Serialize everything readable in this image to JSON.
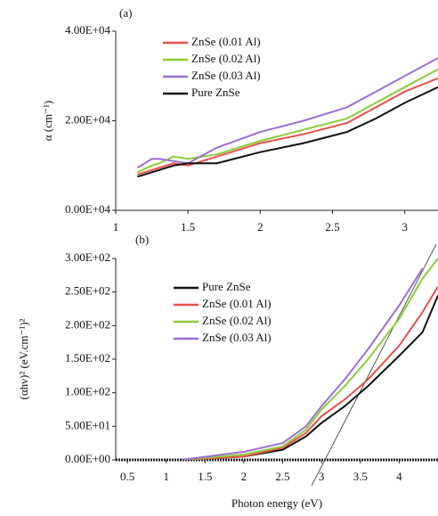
{
  "chart_data": [
    {
      "type": "line",
      "title": "(a)",
      "ylabel": "α (cm⁻¹)",
      "x": [
        1.15,
        1.25,
        1.3,
        1.4,
        1.5,
        1.7,
        2.0,
        2.3,
        2.6,
        2.8,
        3.0,
        3.23
      ],
      "series": [
        {
          "name": "ZnSe (0.01 Al)",
          "color": "#e8514a",
          "values": [
            8000,
            9000,
            9500,
            10500,
            10000,
            12000,
            15000,
            17000,
            19500,
            23000,
            26500,
            29500
          ]
        },
        {
          "name": "ZnSe (0.02 Al)",
          "color": "#8ccc3a",
          "values": [
            8500,
            10000,
            10500,
            12000,
            11500,
            12500,
            15500,
            18000,
            20500,
            24000,
            27500,
            31500
          ]
        },
        {
          "name": "ZnSe (0.03 Al)",
          "color": "#9b6fd0",
          "values": [
            9500,
            11500,
            11500,
            11000,
            10500,
            14000,
            17500,
            20000,
            23000,
            26500,
            30000,
            34000
          ]
        },
        {
          "name": "Pure ZnSe",
          "color": "#111111",
          "values": [
            7500,
            8500,
            9000,
            10000,
            10500,
            10500,
            13000,
            15000,
            17500,
            20500,
            24000,
            27500
          ]
        }
      ],
      "xlim": [
        1,
        3.23
      ],
      "xticks": [
        1,
        1.5,
        2,
        2.5,
        3
      ],
      "ylim": [
        0,
        40000
      ],
      "yticks": [
        {
          "value": 0,
          "label": "0.00E+04"
        },
        {
          "value": 20000,
          "label": "2.00E+04"
        },
        {
          "value": 40000,
          "label": "4.00E+04"
        }
      ],
      "legend": "upper left"
    },
    {
      "type": "line",
      "title": "(b)",
      "xlabel": "Photon energy (eV)",
      "ylabel": "(αhν)² (eV.cm⁻¹)²",
      "x": [
        1.2,
        2.0,
        2.5,
        2.8,
        3.0,
        3.3,
        3.6,
        4.0,
        4.3,
        4.5
      ],
      "series": [
        {
          "name": "Pure ZnSe",
          "color": "#111111",
          "values": [
            0,
            5,
            15,
            35,
            55,
            80,
            110,
            155,
            190,
            245
          ]
        },
        {
          "name": "ZnSe (0.01 Al)",
          "color": "#e8514a",
          "values": [
            0,
            5,
            18,
            40,
            65,
            90,
            120,
            170,
            220,
            258
          ]
        },
        {
          "name": "ZnSe (0.02 Al)",
          "color": "#8ccc3a",
          "values": [
            0,
            8,
            20,
            45,
            75,
            110,
            150,
            210,
            270,
            300
          ]
        },
        {
          "name": "ZnSe (0.03 Al)",
          "color": "#9b6fd0",
          "values": [
            0,
            12,
            25,
            50,
            80,
            120,
            165,
            230,
            285,
            null
          ]
        }
      ],
      "xlim": [
        0.35,
        4.5
      ],
      "xticks": [
        0.5,
        1,
        1.5,
        2,
        2.5,
        3,
        3.5,
        4
      ],
      "ylim": [
        0,
        300
      ],
      "yticks": [
        {
          "value": 0,
          "label": "0.00E+00"
        },
        {
          "value": 50,
          "label": "5.00E+01"
        },
        {
          "value": 100,
          "label": "1.00E+02"
        },
        {
          "value": 150,
          "label": "1.50E+02"
        },
        {
          "value": 200,
          "label": "2.00E+02"
        },
        {
          "value": 250,
          "label": "2.50E+02"
        },
        {
          "value": 300,
          "label": "3.00E+02"
        }
      ],
      "legend": "upper left"
    }
  ]
}
